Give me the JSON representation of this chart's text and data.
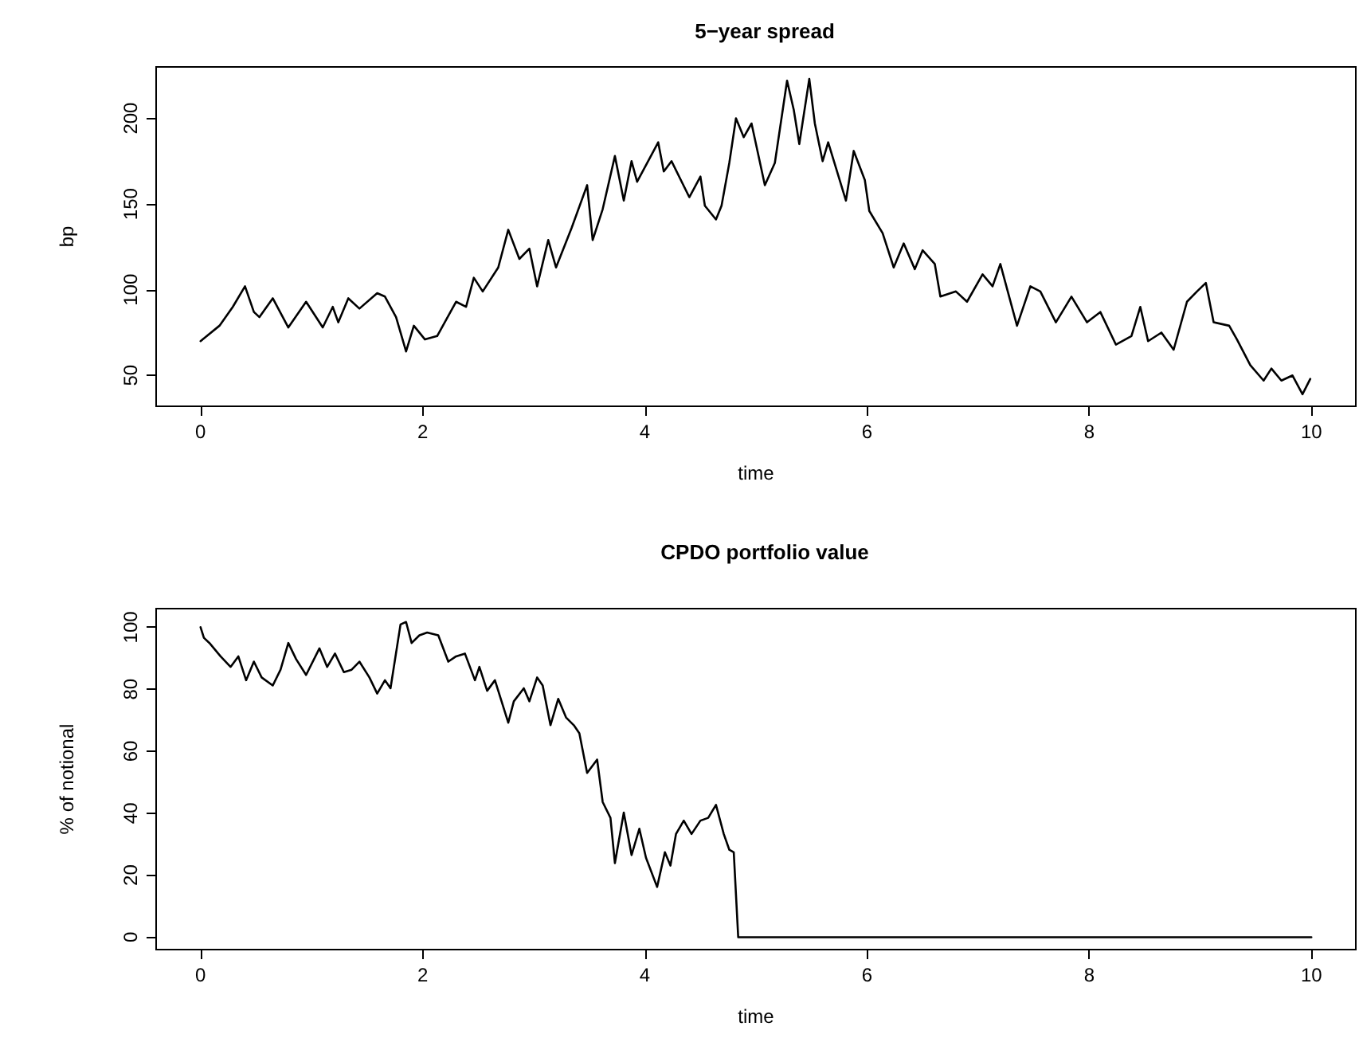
{
  "chart_data": [
    {
      "type": "line",
      "title": "5−year spread",
      "xlabel": "time",
      "ylabel": "bp",
      "xlim": [
        -0.4,
        10.4
      ],
      "xticks": [
        0,
        2,
        4,
        6,
        8,
        10
      ],
      "ylim": [
        32,
        230
      ],
      "yticks": [
        50,
        100,
        150,
        200
      ],
      "marker": "none",
      "line_style": "solid",
      "series": [
        {
          "color": "#000000",
          "x": [
            0,
            0.17,
            0.29,
            0.4,
            0.48,
            0.53,
            0.65,
            0.79,
            0.95,
            1.1,
            1.19,
            1.24,
            1.33,
            1.43,
            1.59,
            1.66,
            1.76,
            1.85,
            1.92,
            2.02,
            2.13,
            2.3,
            2.39,
            2.46,
            2.54,
            2.68,
            2.77,
            2.87,
            2.96,
            3.03,
            3.13,
            3.2,
            3.34,
            3.48,
            3.53,
            3.62,
            3.73,
            3.81,
            3.88,
            3.93,
            4.12,
            4.17,
            4.24,
            4.4,
            4.5,
            4.54,
            4.64,
            4.69,
            4.76,
            4.82,
            4.89,
            4.96,
            5.08,
            5.17,
            5.28,
            5.34,
            5.39,
            5.48,
            5.53,
            5.6,
            5.65,
            5.81,
            5.88,
            5.98,
            6.02,
            6.14,
            6.24,
            6.33,
            6.43,
            6.5,
            6.61,
            6.66,
            6.8,
            6.9,
            7.04,
            7.13,
            7.2,
            7.35,
            7.47,
            7.56,
            7.7,
            7.84,
            7.98,
            8.1,
            8.24,
            8.38,
            8.46,
            8.53,
            8.65,
            8.76,
            8.88,
            8.97,
            9.05,
            9.12,
            9.26,
            9.33,
            9.45,
            9.57,
            9.64,
            9.73,
            9.83,
            9.92,
            9.99
          ],
          "values": [
            70,
            79,
            90,
            102,
            87,
            84,
            95,
            78,
            93,
            78,
            90,
            81,
            95,
            89,
            98,
            96,
            84,
            64,
            79,
            71,
            73,
            93,
            90,
            107,
            99,
            113,
            135,
            118,
            124,
            102,
            129,
            113,
            136,
            161,
            129,
            147,
            178,
            152,
            175,
            163,
            186,
            169,
            175,
            154,
            166,
            149,
            141,
            149,
            174,
            200,
            189,
            197,
            161,
            174,
            222,
            205,
            185,
            223,
            197,
            175,
            186,
            152,
            181,
            164,
            146,
            133,
            113,
            127,
            112,
            123,
            115,
            96,
            99,
            93,
            109,
            102,
            115,
            79,
            102,
            99,
            81,
            96,
            81,
            87,
            68,
            73,
            90,
            70,
            75,
            65,
            93,
            99,
            104,
            81,
            79,
            71,
            56,
            47,
            54,
            47,
            50,
            39,
            48
          ]
        }
      ]
    },
    {
      "type": "line",
      "title": "CPDO portfolio value",
      "xlabel": "time",
      "ylabel": "% of notional",
      "xlim": [
        -0.4,
        10.4
      ],
      "xticks": [
        0,
        2,
        4,
        6,
        8,
        10
      ],
      "ylim": [
        -4,
        106
      ],
      "yticks": [
        0,
        20,
        40,
        60,
        80,
        100
      ],
      "marker": "none",
      "line_style": "solid",
      "series": [
        {
          "color": "#000000",
          "x": [
            0,
            0.03,
            0.08,
            0.18,
            0.27,
            0.34,
            0.41,
            0.48,
            0.55,
            0.65,
            0.72,
            0.79,
            0.86,
            0.95,
            1.07,
            1.14,
            1.21,
            1.29,
            1.36,
            1.43,
            1.52,
            1.59,
            1.66,
            1.71,
            1.8,
            1.85,
            1.9,
            1.97,
            2.04,
            2.14,
            2.23,
            2.3,
            2.38,
            2.47,
            2.51,
            2.58,
            2.65,
            2.77,
            2.82,
            2.91,
            2.96,
            3.03,
            3.08,
            3.15,
            3.22,
            3.29,
            3.36,
            3.41,
            3.48,
            3.57,
            3.62,
            3.69,
            3.73,
            3.81,
            3.88,
            3.95,
            4.01,
            4.11,
            4.18,
            4.23,
            4.28,
            4.35,
            4.42,
            4.5,
            4.57,
            4.64,
            4.71,
            4.76,
            4.8,
            4.84,
            10
          ],
          "values": [
            100,
            96.6,
            94.9,
            90.6,
            87.2,
            90.6,
            82.9,
            88.9,
            83.8,
            81.2,
            86.3,
            94.9,
            89.7,
            84.6,
            93.2,
            87.2,
            91.5,
            85.5,
            86.3,
            88.9,
            83.8,
            78.6,
            82.9,
            80.3,
            100.9,
            101.7,
            94.9,
            97.4,
            98.3,
            97.4,
            88.9,
            90.6,
            91.5,
            82.9,
            87.2,
            79.5,
            82.9,
            69.2,
            76.1,
            80.3,
            76.1,
            83.8,
            81.2,
            68.4,
            76.9,
            70.9,
            68.4,
            65.8,
            53.0,
            57.3,
            43.6,
            38.5,
            23.9,
            40.2,
            26.5,
            35.0,
            25.6,
            16.2,
            27.4,
            23.1,
            33.3,
            37.6,
            33.3,
            37.6,
            38.5,
            42.7,
            33.3,
            28.2,
            27.4,
            0,
            0
          ]
        }
      ]
    }
  ]
}
